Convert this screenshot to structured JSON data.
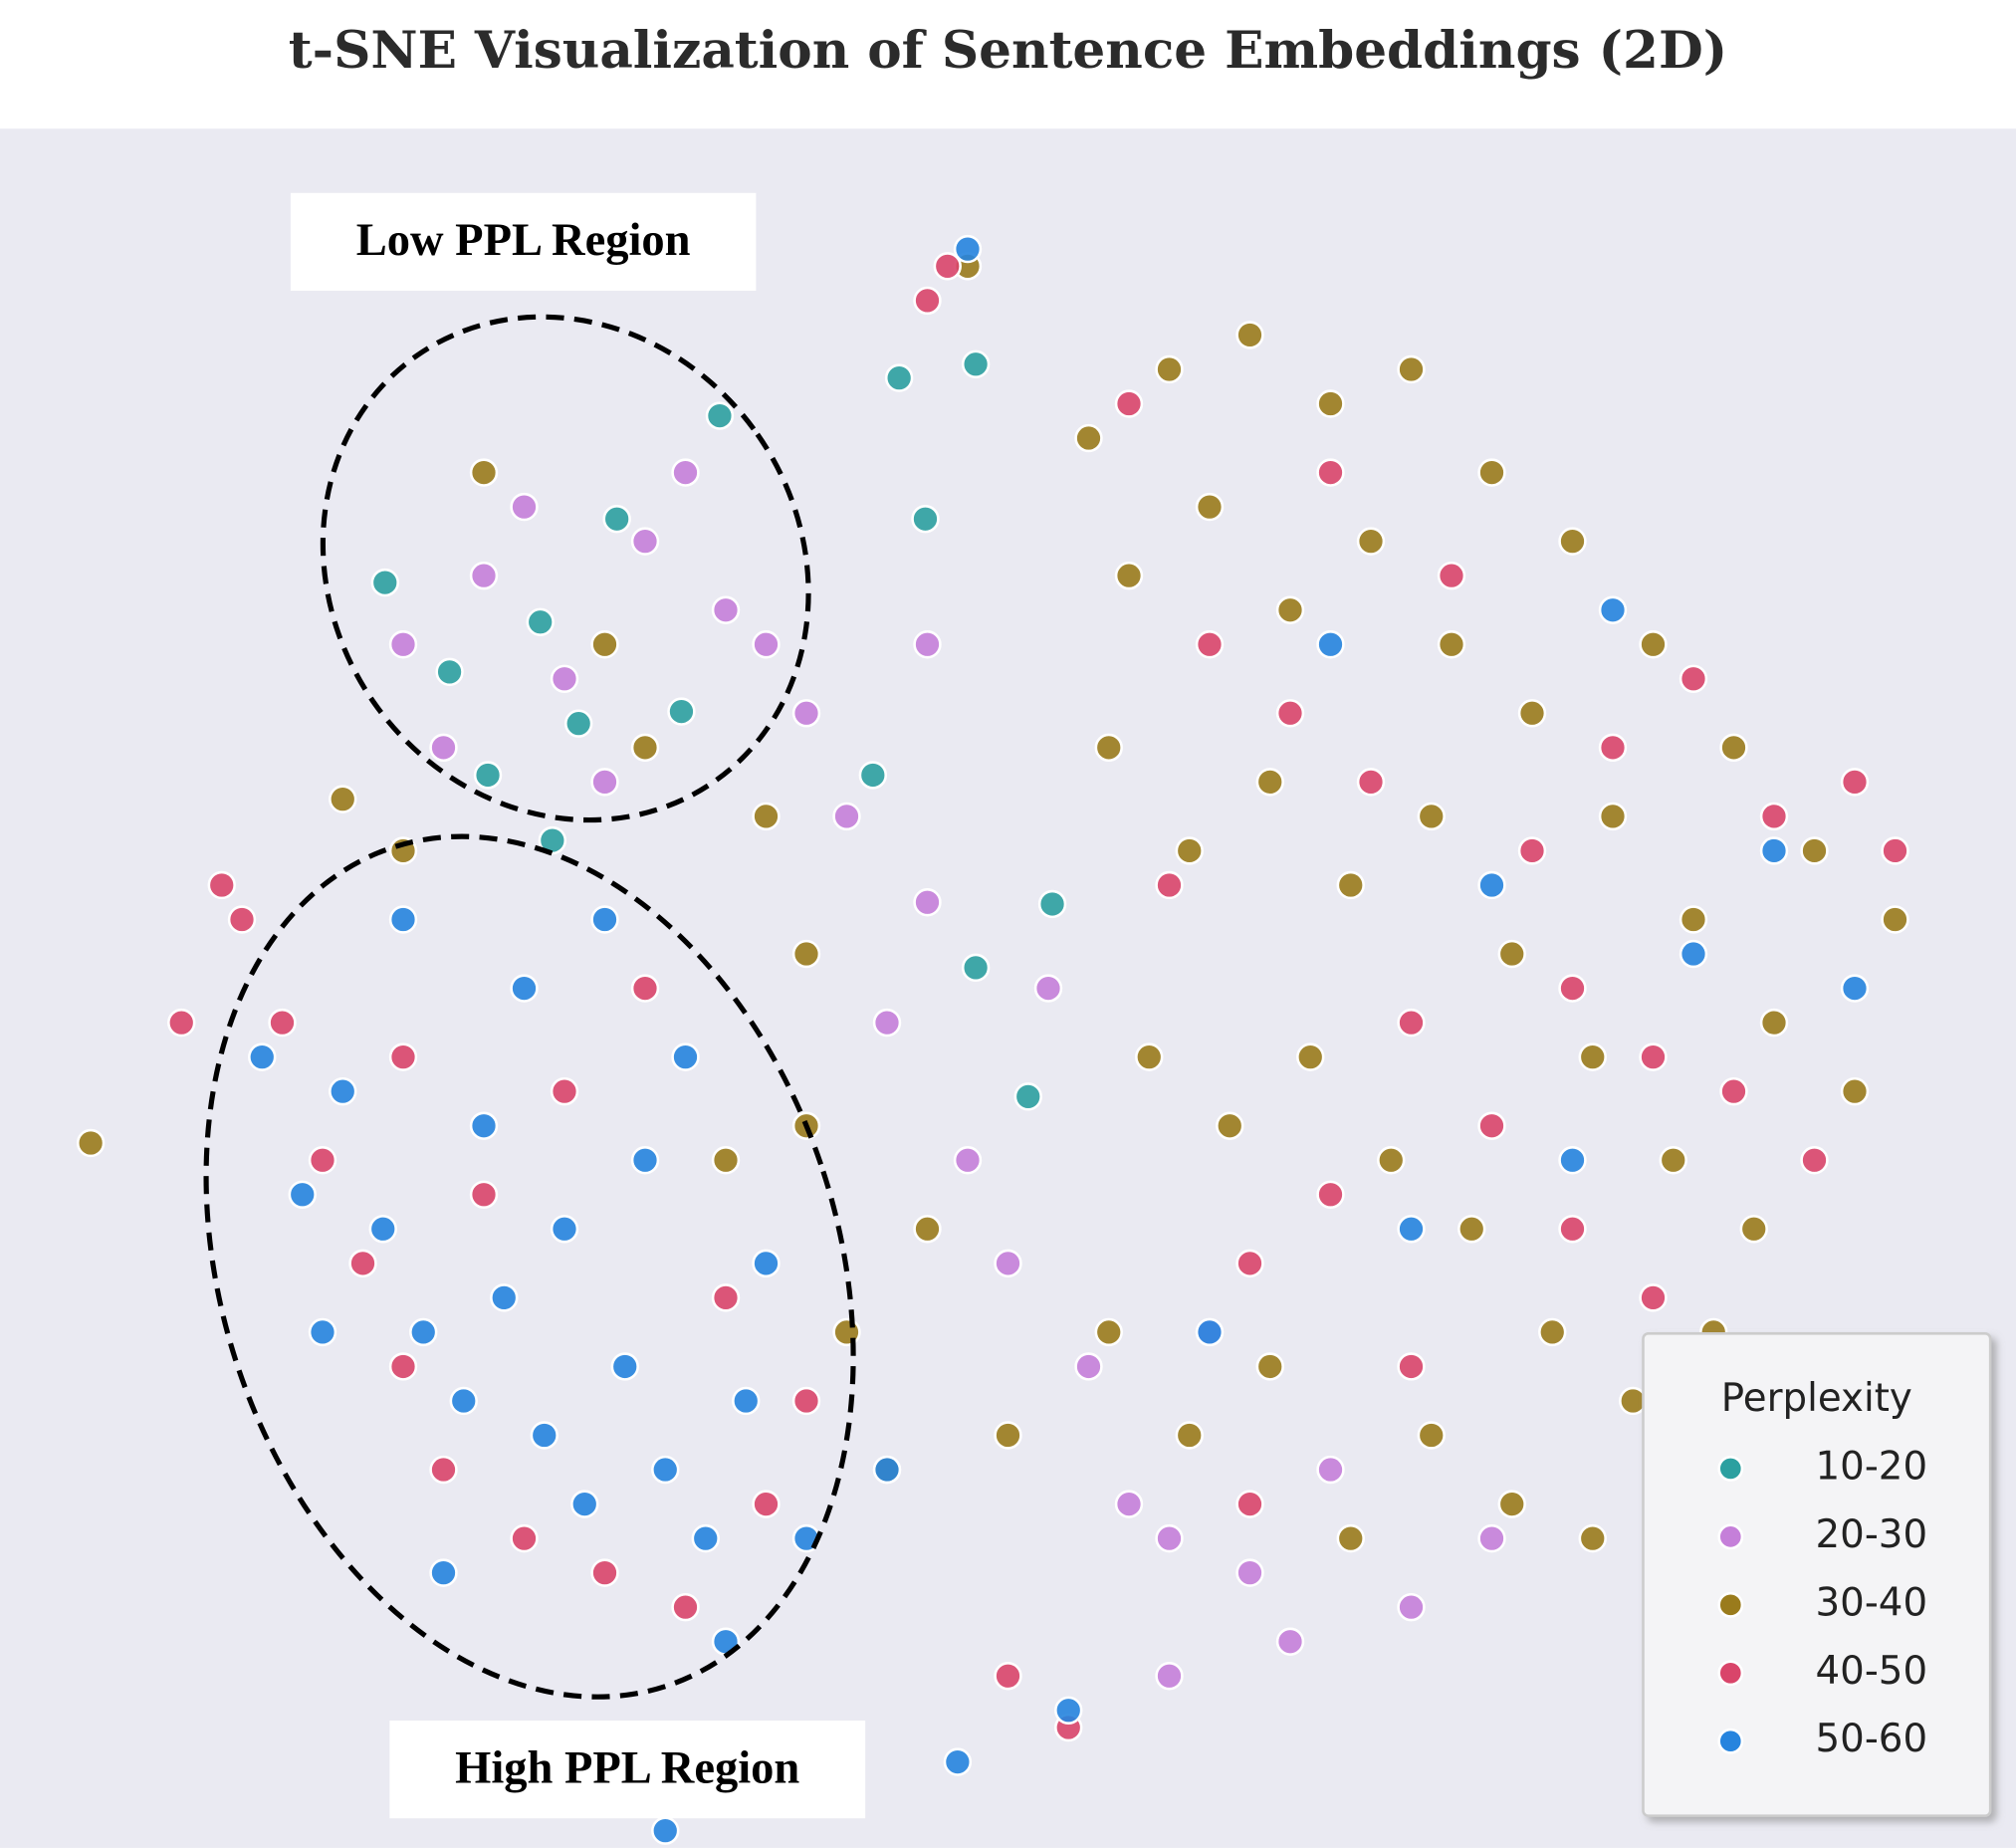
{
  "chart_data": {
    "type": "scatter",
    "title": "t-SNE Visualization of Sentence Embeddings (2D)",
    "annotations": [
      "Low PPL Region",
      "High PPL Region"
    ],
    "legend_title": "Perplexity",
    "legend": "lower right",
    "xlim": [
      0,
      100
    ],
    "ylim": [
      0,
      100
    ],
    "series": [
      {
        "name": "10-20",
        "color": "#2ca0a0",
        "x": [
          19.1,
          22.3,
          26.8,
          30.6,
          33.8,
          35.7,
          24.2,
          28.7,
          44.6,
          48.4,
          45.9,
          43.3,
          48.4,
          51.0,
          52.2,
          27.4
        ],
        "y": [
          73.6,
          68.4,
          71.3,
          77.3,
          66.1,
          83.3,
          62.4,
          65.4,
          85.5,
          86.3,
          77.3,
          62.4,
          51.2,
          43.7,
          54.9,
          58.6
        ]
      },
      {
        "name": "20-30",
        "color": "#c57fd9",
        "x": [
          20,
          24,
          28,
          32,
          36,
          22,
          30,
          26,
          34,
          38,
          42,
          46,
          44,
          48,
          52,
          50,
          54,
          56,
          58,
          62,
          66,
          60,
          40,
          46,
          70,
          64,
          74,
          58
        ],
        "y": [
          70,
          74,
          68,
          76,
          72,
          64,
          62,
          78,
          80,
          70,
          60,
          55,
          48,
          40,
          50,
          34,
          28,
          20,
          18,
          16,
          22,
          30,
          66,
          70,
          14,
          12,
          18,
          10
        ]
      },
      {
        "name": "30-40",
        "color": "#9a7b1c",
        "x": [
          54,
          58,
          62,
          66,
          70,
          74,
          78,
          82,
          86,
          90,
          94,
          56,
          60,
          64,
          68,
          72,
          76,
          80,
          84,
          88,
          92,
          55,
          59,
          63,
          67,
          71,
          75,
          79,
          83,
          87,
          57,
          61,
          65,
          69,
          73,
          77,
          81,
          85,
          55,
          59,
          63,
          67,
          71,
          75,
          79,
          38,
          40,
          36,
          42,
          44,
          40,
          46,
          50,
          24,
          30,
          20,
          32,
          4.5,
          48,
          17
        ],
        "y": [
          82,
          86,
          88,
          84,
          86,
          80,
          76,
          70,
          64,
          58,
          54,
          74,
          78,
          72,
          76,
          70,
          66,
          60,
          54,
          48,
          44,
          64,
          58,
          62,
          56,
          60,
          52,
          46,
          40,
          36,
          46,
          42,
          46,
          40,
          36,
          30,
          26,
          30,
          30,
          24,
          28,
          18,
          24,
          20,
          18,
          60,
          52,
          40,
          30,
          22,
          42,
          36,
          24,
          80,
          70,
          58,
          64,
          41,
          92,
          61
        ]
      },
      {
        "name": "40-50",
        "color": "#d9456a",
        "x": [
          60,
          64,
          68,
          72,
          76,
          80,
          84,
          88,
          92,
          94,
          78,
          82,
          86,
          90,
          70,
          66,
          62,
          74,
          78,
          82,
          70,
          58,
          56,
          66,
          62,
          46,
          47,
          12,
          14,
          16,
          18,
          20,
          22,
          26,
          30,
          34,
          38,
          40,
          36,
          28,
          32,
          24,
          20,
          11,
          9,
          50,
          53
        ],
        "y": [
          70,
          66,
          62,
          74,
          58,
          64,
          68,
          60,
          62,
          58,
          50,
          46,
          44,
          40,
          48,
          38,
          34,
          42,
          36,
          32,
          28,
          56,
          84,
          80,
          20,
          90,
          92,
          54,
          48,
          40,
          34,
          28,
          22,
          18,
          16,
          14,
          20,
          26,
          32,
          44,
          50,
          38,
          46,
          56,
          48,
          10,
          7
        ]
      },
      {
        "name": "50-60",
        "color": "#2684de",
        "x": [
          13,
          15,
          17,
          19,
          21,
          23,
          25,
          27,
          29,
          31,
          33,
          35,
          37,
          24,
          28,
          32,
          26,
          30,
          20,
          34,
          38,
          36,
          22,
          40,
          16,
          44,
          66,
          74,
          84,
          88,
          92,
          78,
          70,
          60,
          80,
          48,
          47.5,
          53,
          33
        ],
        "y": [
          46,
          38,
          44,
          36,
          30,
          26,
          32,
          24,
          20,
          28,
          22,
          18,
          26,
          42,
          36,
          40,
          50,
          54,
          54,
          46,
          34,
          12,
          16,
          18,
          30,
          22,
          70,
          56,
          52,
          58,
          50,
          40,
          36,
          30,
          72,
          93,
          5,
          8,
          1
        ]
      }
    ]
  }
}
